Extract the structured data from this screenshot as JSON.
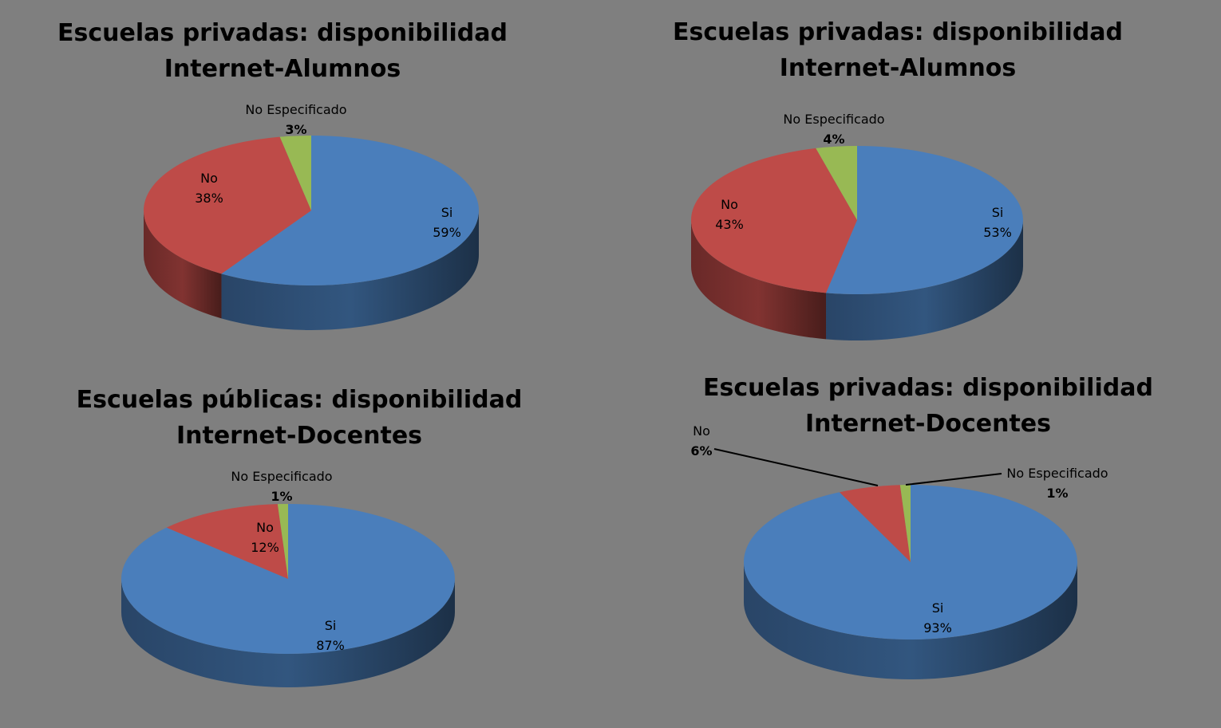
{
  "colors": {
    "background": "#7f7f7f",
    "si": "#4a7ebb",
    "no": "#be4b48",
    "no_especificado": "#98b954"
  },
  "chart_data": [
    {
      "type": "pie",
      "style": "3d",
      "title": [
        "Escuelas privadas: disponibilidad",
        "Internet-Alumnos"
      ],
      "categories": [
        "Si",
        "No",
        "No Especificado"
      ],
      "values": [
        59,
        38,
        3
      ],
      "labels": [
        "59%",
        "38%",
        "3%"
      ]
    },
    {
      "type": "pie",
      "style": "3d",
      "title": [
        "Escuelas privadas: disponibilidad",
        "Internet-Alumnos"
      ],
      "categories": [
        "Si",
        "No",
        "No Especificado"
      ],
      "values": [
        53,
        43,
        4
      ],
      "labels": [
        "53%",
        "43%",
        "4%"
      ]
    },
    {
      "type": "pie",
      "style": "3d",
      "title": [
        "Escuelas públicas: disponibilidad",
        "Internet-Docentes"
      ],
      "categories": [
        "Si",
        "No",
        "No Especificado"
      ],
      "values": [
        87,
        12,
        1
      ],
      "labels": [
        "87%",
        "12%",
        "1%"
      ]
    },
    {
      "type": "pie",
      "style": "3d",
      "title": [
        "Escuelas privadas: disponibilidad",
        "Internet-Docentes"
      ],
      "categories": [
        "Si",
        "No",
        "No Especificado"
      ],
      "values": [
        93,
        6,
        1
      ],
      "labels": [
        "93%",
        "6%",
        "1%"
      ]
    }
  ]
}
